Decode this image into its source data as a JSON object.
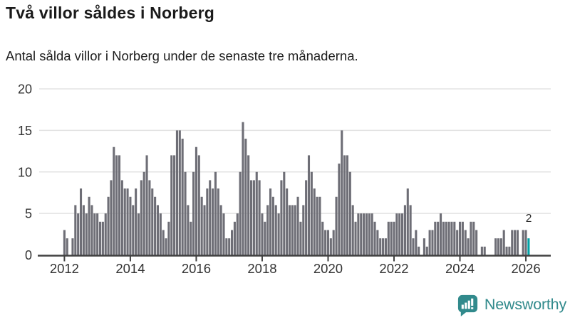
{
  "header": {
    "title": "Två villor såldes i Norberg",
    "subtitle": "Antal sålda villor i Norberg under de senaste tre månaderna."
  },
  "chart_data": {
    "type": "bar",
    "title": "Två villor såldes i Norberg",
    "subtitle": "Antal sålda villor i Norberg under de senaste tre månaderna.",
    "x_start_month": "2012-01",
    "x_end_month": "2026-02",
    "x_tick_labels": [
      "2012",
      "2014",
      "2016",
      "2018",
      "2020",
      "2022",
      "2024",
      "2026"
    ],
    "y_ticks": [
      0,
      5,
      10,
      15,
      20
    ],
    "ylim": [
      0,
      20
    ],
    "grid": true,
    "bar_color": "#6e6e76",
    "gridline_color": "#e3e3e3",
    "axis_color": "#404040",
    "tick_label_color": "#333333",
    "values": [
      3,
      2,
      0,
      2,
      6,
      5,
      8,
      6,
      5,
      7,
      6,
      5,
      5,
      4,
      4,
      5,
      7,
      9,
      13,
      12,
      12,
      9,
      8,
      8,
      7,
      6,
      8,
      5,
      9,
      10,
      12,
      9,
      8,
      7,
      6,
      5,
      3,
      2,
      4,
      12,
      12,
      15,
      15,
      14,
      10,
      6,
      4,
      10,
      13,
      12,
      7,
      6,
      8,
      9,
      8,
      10,
      8,
      6,
      5,
      2,
      2,
      3,
      4,
      5,
      10,
      16,
      14,
      12,
      9,
      9,
      10,
      9,
      5,
      4,
      6,
      8,
      7,
      6,
      5,
      9,
      10,
      8,
      6,
      6,
      6,
      7,
      4,
      6,
      9,
      12,
      10,
      8,
      7,
      7,
      4,
      3,
      3,
      2,
      3,
      7,
      11,
      15,
      12,
      12,
      10,
      6,
      4,
      5,
      5,
      5,
      5,
      5,
      5,
      4,
      3,
      2,
      2,
      2,
      4,
      4,
      4,
      5,
      5,
      5,
      6,
      8,
      6,
      2,
      3,
      1,
      0,
      2,
      1,
      3,
      3,
      4,
      4,
      5,
      4,
      4,
      4,
      4,
      4,
      3,
      4,
      4,
      3,
      2,
      4,
      4,
      3,
      0,
      1,
      1,
      0,
      0,
      0,
      2,
      2,
      2,
      3,
      1,
      1,
      3,
      3,
      3,
      0,
      3,
      3,
      2
    ],
    "highlight": {
      "index": 169,
      "value": 2,
      "label": "2",
      "color": "#00a2a6"
    }
  },
  "footer": {
    "brand": "Newsworthy",
    "brand_color": "#318a8c",
    "logo_icon": "bar-chart-speech-bubble-icon"
  }
}
